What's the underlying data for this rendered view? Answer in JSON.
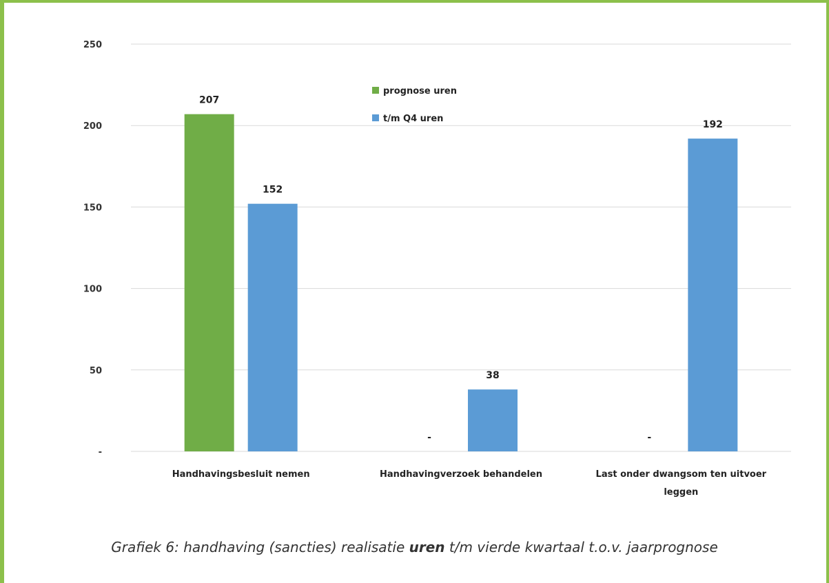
{
  "caption": {
    "prefix": "Grafiek 6: handhaving (sancties) realisatie ",
    "emphasis": "uren",
    "suffix": " t/m vierde kwartaal t.o.v. jaarprognose"
  },
  "colors": {
    "frame": "#8cc04b",
    "prognose": "#70ad47",
    "realisatie": "#5b9bd5",
    "grid": "#d9d9d9"
  },
  "chart_data": {
    "type": "bar",
    "categories": [
      [
        "Handhavingsbesluit nemen"
      ],
      [
        "Handhavingverzoek behandelen"
      ],
      [
        "Last onder dwangsom ten uitvoer",
        "leggen"
      ]
    ],
    "series": [
      {
        "name": "prognose uren",
        "values": [
          207,
          0,
          0
        ],
        "labels": [
          "207",
          "-",
          "-"
        ]
      },
      {
        "name": "t/m Q4 uren",
        "values": [
          152,
          38,
          192
        ],
        "labels": [
          "152",
          "38",
          "192"
        ]
      }
    ],
    "yticks": [
      {
        "value": 0,
        "label": "-"
      },
      {
        "value": 50,
        "label": "50"
      },
      {
        "value": 100,
        "label": "100"
      },
      {
        "value": 150,
        "label": "150"
      },
      {
        "value": 200,
        "label": "200"
      },
      {
        "value": 250,
        "label": "250"
      }
    ],
    "ylim": [
      0,
      250
    ],
    "grid": true,
    "legend_position": "top-center"
  }
}
